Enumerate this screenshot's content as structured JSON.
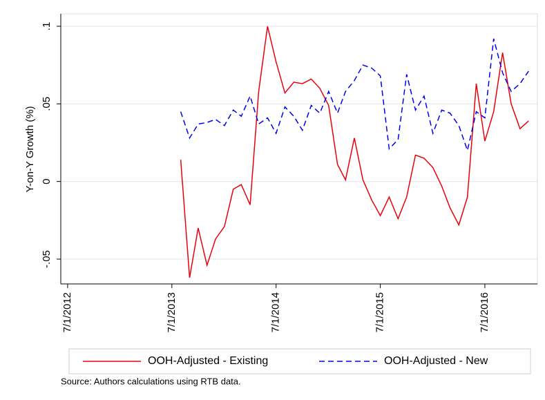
{
  "chart_data": {
    "type": "line",
    "y_label": "Y-on-Y Growth (%)",
    "note": "Source: Authors calculations using RTB data.",
    "x": [
      "2013-08-01",
      "2013-09-01",
      "2013-10-01",
      "2013-11-01",
      "2013-12-01",
      "2014-01-01",
      "2014-02-01",
      "2014-03-01",
      "2014-04-01",
      "2014-05-01",
      "2014-06-01",
      "2014-07-01",
      "2014-08-01",
      "2014-09-01",
      "2014-10-01",
      "2014-11-01",
      "2014-12-01",
      "2015-01-01",
      "2015-02-01",
      "2015-03-01",
      "2015-04-01",
      "2015-05-01",
      "2015-06-01",
      "2015-07-01",
      "2015-08-01",
      "2015-09-01",
      "2015-10-01",
      "2015-11-01",
      "2015-12-01",
      "2016-01-01",
      "2016-02-01",
      "2016-03-01",
      "2016-04-01",
      "2016-05-01",
      "2016-06-01",
      "2016-07-01",
      "2016-08-01",
      "2016-09-01",
      "2016-10-01",
      "2016-11-01",
      "2016-12-01"
    ],
    "series": [
      {
        "name": "OOH-Adjusted - Existing",
        "color": "#e8000b",
        "dash": false,
        "values": [
          0.014,
          -0.062,
          -0.03,
          -0.054,
          -0.037,
          -0.029,
          -0.005,
          -0.002,
          -0.015,
          0.058,
          0.1,
          0.077,
          0.057,
          0.064,
          0.063,
          0.066,
          0.06,
          0.049,
          0.011,
          0.001,
          0.028,
          0.001,
          -0.012,
          -0.022,
          -0.01,
          -0.024,
          -0.01,
          0.017,
          0.015,
          0.009,
          -0.003,
          -0.017,
          -0.028,
          -0.01,
          0.063,
          0.026,
          0.045,
          0.083,
          0.05,
          0.034,
          0.039
        ]
      },
      {
        "name": "OOH-Adjusted - New",
        "color": "#0000ee",
        "dash": true,
        "values": [
          0.045,
          0.028,
          0.037,
          0.038,
          0.04,
          0.036,
          0.046,
          0.042,
          0.055,
          0.037,
          0.041,
          0.031,
          0.048,
          0.042,
          0.033,
          0.049,
          0.044,
          0.058,
          0.044,
          0.058,
          0.065,
          0.075,
          0.073,
          0.068,
          0.021,
          0.027,
          0.069,
          0.046,
          0.055,
          0.031,
          0.046,
          0.044,
          0.036,
          0.02,
          0.045,
          0.041,
          0.092,
          0.07,
          0.058,
          0.063,
          0.071
        ]
      }
    ],
    "xlim": [
      "2012-06-07",
      "2017-01-01"
    ],
    "xticks": [
      {
        "value": "2012-07-01",
        "label": "7/1/2012"
      },
      {
        "value": "2013-07-01",
        "label": "7/1/2013"
      },
      {
        "value": "2014-07-01",
        "label": "7/1/2014"
      },
      {
        "value": "2015-07-01",
        "label": "7/1/2015"
      },
      {
        "value": "2016-07-01",
        "label": "7/1/2016"
      }
    ],
    "ylim": [
      -0.066,
      0.108
    ],
    "yticks": [
      {
        "value": -0.05,
        "label": "-.05"
      },
      0,
      {
        "value": 0.05,
        "label": ".05"
      },
      {
        "value": 0.1,
        "label": ".1"
      }
    ],
    "grid": true
  }
}
